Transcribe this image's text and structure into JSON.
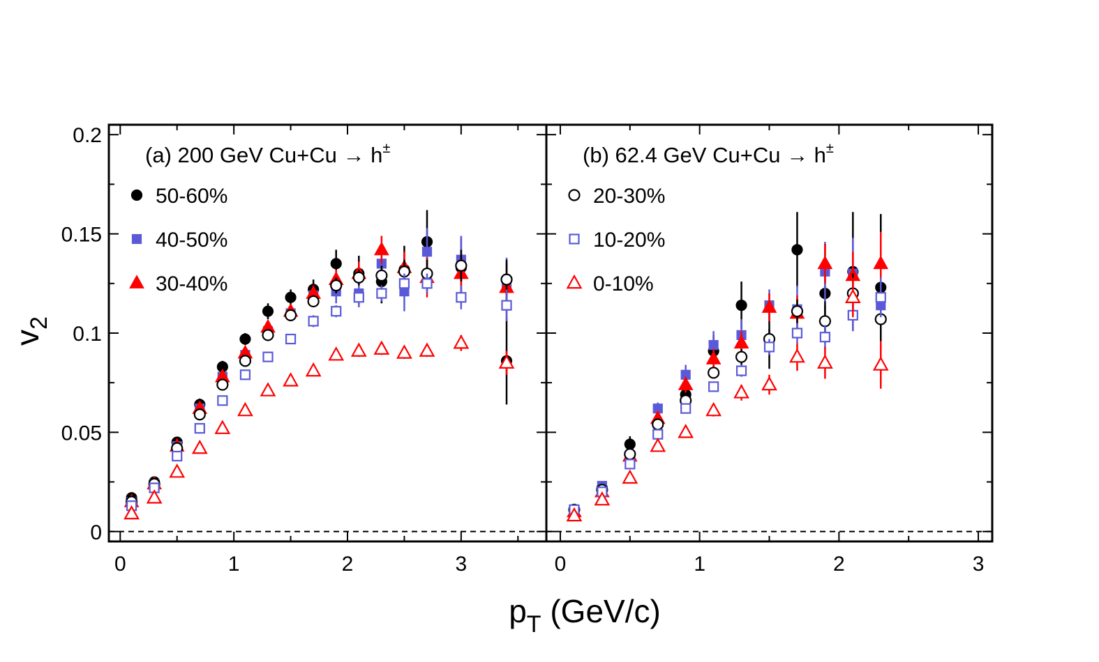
{
  "figure": {
    "xlabel_main": "p",
    "xlabel_sub": "T",
    "xlabel_rest": " (GeV/c)",
    "ylabel_main": "v",
    "ylabel_sub": "2"
  },
  "chart_data": [
    {
      "type": "scatter",
      "title": "(a) 200 GeV Cu+Cu → h±",
      "title_main": "(a) 200 GeV Cu+Cu → h",
      "title_sup": "±",
      "xlabel": "pT (GeV/c)",
      "ylabel": "v2",
      "xlim": [
        -0.1,
        3.75
      ],
      "ylim": [
        -0.005,
        0.205
      ],
      "x_ticks": [
        0,
        1,
        2,
        3
      ],
      "x_tick_labels": [
        "0",
        "1",
        "2",
        "3"
      ],
      "y_ticks": [
        0,
        0.05,
        0.1,
        0.15,
        0.2
      ],
      "y_tick_labels": [
        "0",
        "0.05",
        "0.1",
        "0.15",
        "0.2"
      ],
      "reference_line": {
        "y": 0,
        "style": "dashed"
      },
      "legend_position": "top-left",
      "series": [
        {
          "name": "50-60%",
          "marker": "circle",
          "filled": true,
          "color": "#000000",
          "x": [
            0.1,
            0.3,
            0.5,
            0.7,
            0.9,
            1.1,
            1.3,
            1.5,
            1.7,
            1.9,
            2.1,
            2.3,
            2.5,
            2.7,
            3.0,
            3.4
          ],
          "y": [
            0.017,
            0.025,
            0.045,
            0.064,
            0.083,
            0.097,
            0.111,
            0.118,
            0.122,
            0.135,
            0.13,
            0.126,
            0.132,
            0.146,
            0.133,
            0.086
          ],
          "err": [
            0.002,
            0.002,
            0.002,
            0.003,
            0.003,
            0.003,
            0.004,
            0.004,
            0.005,
            0.007,
            0.009,
            0.011,
            0.012,
            0.016,
            0.015,
            0.022
          ]
        },
        {
          "name": "40-50%",
          "marker": "square",
          "filled": true,
          "color": "#5a5ad8",
          "x": [
            0.1,
            0.3,
            0.5,
            0.7,
            0.9,
            1.1,
            1.3,
            1.5,
            1.7,
            1.9,
            2.1,
            2.3,
            2.5,
            2.7,
            3.0,
            3.4
          ],
          "y": [
            0.015,
            0.024,
            0.043,
            0.062,
            0.078,
            0.089,
            0.101,
            0.11,
            0.119,
            0.121,
            0.12,
            0.135,
            0.121,
            0.141,
            0.137,
            0.123
          ],
          "err": [
            0.002,
            0.002,
            0.002,
            0.002,
            0.003,
            0.003,
            0.003,
            0.004,
            0.004,
            0.006,
            0.007,
            0.009,
            0.01,
            0.012,
            0.012,
            0.015
          ]
        },
        {
          "name": "30-40%",
          "marker": "triangle",
          "filled": true,
          "color": "#ff0000",
          "x": [
            0.1,
            0.3,
            0.5,
            0.7,
            0.9,
            1.1,
            1.3,
            1.5,
            1.7,
            1.9,
            2.1,
            2.3,
            2.5,
            2.7,
            3.0,
            3.4
          ],
          "y": [
            0.015,
            0.024,
            0.043,
            0.062,
            0.078,
            0.09,
            0.103,
            0.111,
            0.12,
            0.127,
            0.13,
            0.142,
            0.133,
            0.128,
            0.13,
            0.123
          ],
          "err": [
            0.002,
            0.002,
            0.002,
            0.002,
            0.002,
            0.003,
            0.003,
            0.003,
            0.004,
            0.005,
            0.006,
            0.007,
            0.008,
            0.01,
            0.01,
            0.012
          ]
        },
        {
          "name": "20-30%",
          "marker": "circle",
          "filled": false,
          "color": "#000000",
          "x": [
            0.1,
            0.3,
            0.5,
            0.7,
            0.9,
            1.1,
            1.3,
            1.5,
            1.7,
            1.9,
            2.1,
            2.3,
            2.5,
            2.7,
            3.0,
            3.4
          ],
          "y": [
            0.015,
            0.024,
            0.042,
            0.059,
            0.074,
            0.086,
            0.099,
            0.109,
            0.116,
            0.124,
            0.128,
            0.129,
            0.131,
            0.13,
            0.134,
            0.127
          ],
          "err": [
            0.001,
            0.001,
            0.001,
            0.002,
            0.002,
            0.002,
            0.002,
            0.003,
            0.003,
            0.004,
            0.004,
            0.005,
            0.006,
            0.007,
            0.008,
            0.01
          ]
        },
        {
          "name": "10-20%",
          "marker": "square",
          "filled": false,
          "color": "#5a5ad8",
          "x": [
            0.1,
            0.3,
            0.5,
            0.7,
            0.9,
            1.1,
            1.3,
            1.5,
            1.7,
            1.9,
            2.1,
            2.3,
            2.5,
            2.7,
            3.0,
            3.4
          ],
          "y": [
            0.013,
            0.022,
            0.038,
            0.052,
            0.066,
            0.079,
            0.088,
            0.097,
            0.106,
            0.111,
            0.118,
            0.12,
            0.125,
            0.125,
            0.118,
            0.114
          ],
          "err": [
            0.001,
            0.001,
            0.001,
            0.001,
            0.002,
            0.002,
            0.002,
            0.002,
            0.003,
            0.003,
            0.004,
            0.004,
            0.005,
            0.005,
            0.006,
            0.008
          ]
        },
        {
          "name": "0-10%",
          "marker": "triangle",
          "filled": false,
          "color": "#ff0000",
          "x": [
            0.1,
            0.3,
            0.5,
            0.7,
            0.9,
            1.1,
            1.3,
            1.5,
            1.7,
            1.9,
            2.1,
            2.3,
            2.5,
            2.7,
            3.0,
            3.4
          ],
          "y": [
            0.009,
            0.017,
            0.03,
            0.042,
            0.052,
            0.061,
            0.071,
            0.076,
            0.081,
            0.089,
            0.091,
            0.092,
            0.09,
            0.091,
            0.095,
            0.085
          ],
          "err": [
            0.001,
            0.001,
            0.001,
            0.001,
            0.001,
            0.001,
            0.002,
            0.002,
            0.002,
            0.002,
            0.003,
            0.003,
            0.003,
            0.003,
            0.004,
            0.006
          ]
        }
      ]
    },
    {
      "type": "scatter",
      "title": "(b) 62.4 GeV Cu+Cu → h±",
      "title_main": "(b) 62.4 GeV Cu+Cu → h",
      "title_sup": "±",
      "xlabel": "pT (GeV/c)",
      "ylabel": "v2",
      "xlim": [
        -0.1,
        3.1
      ],
      "ylim": [
        -0.005,
        0.205
      ],
      "x_ticks": [
        0,
        1,
        2,
        3
      ],
      "x_tick_labels": [
        "0",
        "1",
        "2",
        "3"
      ],
      "y_ticks": [
        0,
        0.05,
        0.1,
        0.15,
        0.2
      ],
      "y_tick_labels": [
        "",
        "",
        "",
        "",
        ""
      ],
      "reference_line": {
        "y": 0,
        "style": "dashed"
      },
      "legend_position": "top-left",
      "legend_series": [
        3,
        4,
        5
      ],
      "series": [
        {
          "name": "50-60%",
          "marker": "circle",
          "filled": true,
          "color": "#000000",
          "x": [
            0.1,
            0.3,
            0.5,
            0.7,
            0.9,
            1.1,
            1.3,
            1.5,
            1.7,
            1.9,
            2.1,
            2.3
          ],
          "y": [
            0.011,
            0.022,
            0.044,
            0.055,
            0.069,
            0.091,
            0.114,
            0.097,
            0.142,
            0.12,
            0.131,
            0.123
          ],
          "err": [
            0.002,
            0.003,
            0.004,
            0.005,
            0.006,
            0.008,
            0.012,
            0.015,
            0.019,
            0.025,
            0.03,
            0.037
          ]
        },
        {
          "name": "40-50%",
          "marker": "square",
          "filled": true,
          "color": "#5a5ad8",
          "x": [
            0.1,
            0.3,
            0.5,
            0.7,
            0.9,
            1.1,
            1.3,
            1.5,
            1.7,
            1.9,
            2.1,
            2.3
          ],
          "y": [
            0.011,
            0.023,
            0.037,
            0.062,
            0.079,
            0.094,
            0.099,
            0.114,
            0.112,
            0.131,
            0.13,
            0.114
          ],
          "err": [
            0.001,
            0.002,
            0.003,
            0.003,
            0.005,
            0.007,
            0.008,
            0.008,
            0.012,
            0.015,
            0.018,
            0.022
          ]
        },
        {
          "name": "30-40%",
          "marker": "triangle",
          "filled": true,
          "color": "#ff0000",
          "x": [
            0.1,
            0.3,
            0.5,
            0.7,
            0.9,
            1.1,
            1.3,
            1.5,
            1.7,
            1.9,
            2.1,
            2.3
          ],
          "y": [
            0.01,
            0.02,
            0.038,
            0.057,
            0.074,
            0.087,
            0.095,
            0.113,
            0.11,
            0.135,
            0.129,
            0.135
          ],
          "err": [
            0.001,
            0.002,
            0.002,
            0.003,
            0.004,
            0.005,
            0.006,
            0.007,
            0.009,
            0.01,
            0.012,
            0.016
          ]
        },
        {
          "name": "20-30%",
          "marker": "circle",
          "filled": false,
          "color": "#000000",
          "x": [
            0.1,
            0.3,
            0.5,
            0.7,
            0.9,
            1.1,
            1.3,
            1.5,
            1.7,
            1.9,
            2.1,
            2.3
          ],
          "y": [
            0.011,
            0.021,
            0.039,
            0.054,
            0.066,
            0.08,
            0.088,
            0.097,
            0.111,
            0.106,
            0.12,
            0.107
          ],
          "err": [
            0.001,
            0.001,
            0.002,
            0.002,
            0.003,
            0.003,
            0.004,
            0.005,
            0.006,
            0.008,
            0.01,
            0.013
          ]
        },
        {
          "name": "10-20%",
          "marker": "square",
          "filled": false,
          "color": "#5a5ad8",
          "x": [
            0.1,
            0.3,
            0.5,
            0.7,
            0.9,
            1.1,
            1.3,
            1.5,
            1.7,
            1.9,
            2.1,
            2.3
          ],
          "y": [
            0.011,
            0.02,
            0.034,
            0.049,
            0.062,
            0.073,
            0.081,
            0.093,
            0.1,
            0.098,
            0.109,
            0.118
          ],
          "err": [
            0.001,
            0.001,
            0.001,
            0.002,
            0.002,
            0.002,
            0.003,
            0.004,
            0.005,
            0.006,
            0.008,
            0.01
          ]
        },
        {
          "name": "0-10%",
          "marker": "triangle",
          "filled": false,
          "color": "#ff0000",
          "x": [
            0.1,
            0.3,
            0.5,
            0.7,
            0.9,
            1.1,
            1.3,
            1.5,
            1.7,
            1.9,
            2.1,
            2.3
          ],
          "y": [
            0.008,
            0.016,
            0.027,
            0.043,
            0.05,
            0.061,
            0.07,
            0.074,
            0.088,
            0.085,
            0.118,
            0.084
          ],
          "err": [
            0.001,
            0.001,
            0.001,
            0.001,
            0.002,
            0.003,
            0.004,
            0.005,
            0.007,
            0.008,
            0.01,
            0.012
          ]
        }
      ]
    }
  ]
}
